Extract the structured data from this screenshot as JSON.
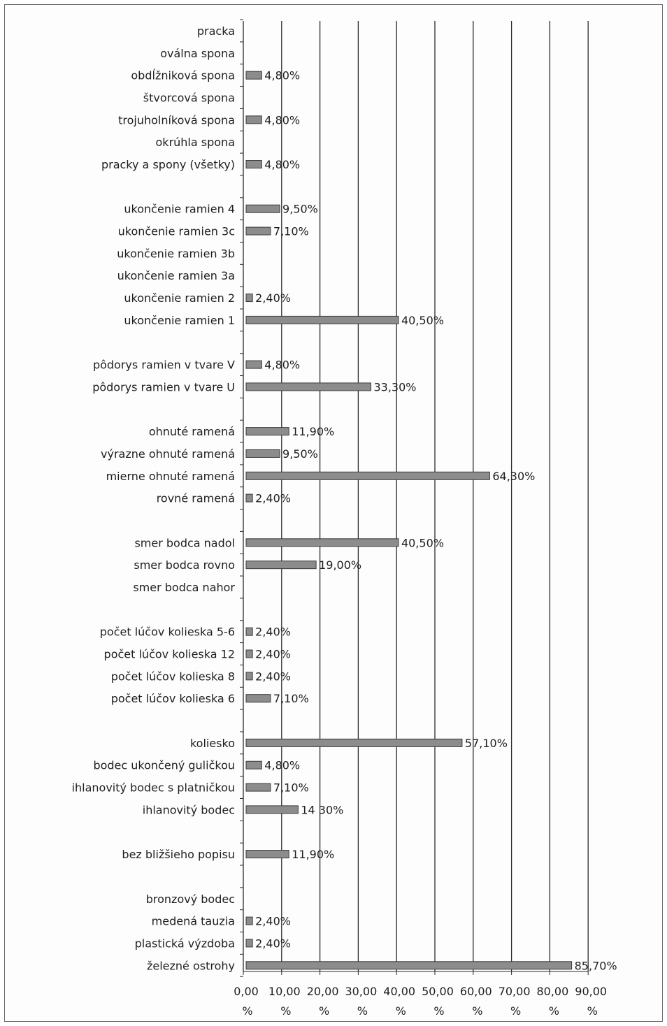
{
  "chart_data": {
    "type": "bar",
    "orientation": "horizontal",
    "title": "",
    "xlabel": "",
    "ylabel": "",
    "xlim": [
      0,
      90
    ],
    "grid": "vertical",
    "legend": "none",
    "bar_color": "#8c8c8c",
    "categories": [
      "pracka",
      "oválna spona",
      "obdĺžniková spona",
      "štvorcová spona",
      "trojuholníková spona",
      "okrúhla spona",
      "pracky a spony (všetky)",
      "",
      "ukončenie ramien 4",
      "ukončenie ramien 3c",
      "ukončenie ramien 3b",
      "ukončenie ramien 3a",
      "ukončenie ramien 2",
      "ukončenie ramien 1",
      "",
      "pôdorys ramien v tvare V",
      "pôdorys ramien v tvare U",
      "",
      "ohnuté ramená",
      "výrazne ohnuté ramená",
      "mierne ohnuté ramená",
      "rovné ramená",
      "",
      "smer bodca nadol",
      "smer bodca rovno",
      "smer bodca nahor",
      "",
      "počet lúčov kolieska 5-6",
      "počet lúčov kolieska 12",
      "počet lúčov kolieska 8",
      "počet lúčov kolieska 6",
      "",
      "koliesko",
      "bodec ukončený guličkou",
      "ihlanovitý bodec s platničkou",
      "ihlanovitý bodec",
      "",
      "bez bližšieho popisu",
      "",
      "bronzový bodec",
      "medená tauzia",
      "plastická výzdoba",
      "železné ostrohy"
    ],
    "values": [
      null,
      null,
      4.8,
      null,
      4.8,
      null,
      4.8,
      null,
      9.5,
      7.1,
      null,
      null,
      2.4,
      40.5,
      null,
      4.8,
      33.3,
      null,
      11.9,
      9.5,
      64.3,
      2.4,
      null,
      40.5,
      19.0,
      null,
      null,
      2.4,
      2.4,
      2.4,
      7.1,
      null,
      57.1,
      4.8,
      7.1,
      14.3,
      null,
      11.9,
      null,
      null,
      2.4,
      2.4,
      85.7
    ],
    "data_labels": [
      "",
      "",
      "4,80%",
      "",
      "4,80%",
      "",
      "4,80%",
      "",
      "9,50%",
      "7,10%",
      "",
      "",
      "2,40%",
      "40,50%",
      "",
      "4,80%",
      "33,30%",
      "",
      "11,90%",
      "9,50%",
      "64,30%",
      "2,40%",
      "",
      "40,50%",
      "19,00%",
      "",
      "",
      "2,40%",
      "2,40%",
      "2,40%",
      "7,10%",
      "",
      "57,10%",
      "4,80%",
      "7,10%",
      "14 30%",
      "",
      "11,90%",
      "",
      "",
      "2,40%",
      "2,40%",
      "85,70%"
    ],
    "x_ticks": [
      0,
      10,
      20,
      30,
      40,
      50,
      60,
      70,
      80,
      90
    ],
    "x_tick_labels": [
      "0,00",
      "10,00",
      "20,00",
      "30,00",
      "40,00",
      "50,00",
      "60,00",
      "70,00",
      "80,00",
      "90,00"
    ],
    "x_tick_unit": "%"
  }
}
